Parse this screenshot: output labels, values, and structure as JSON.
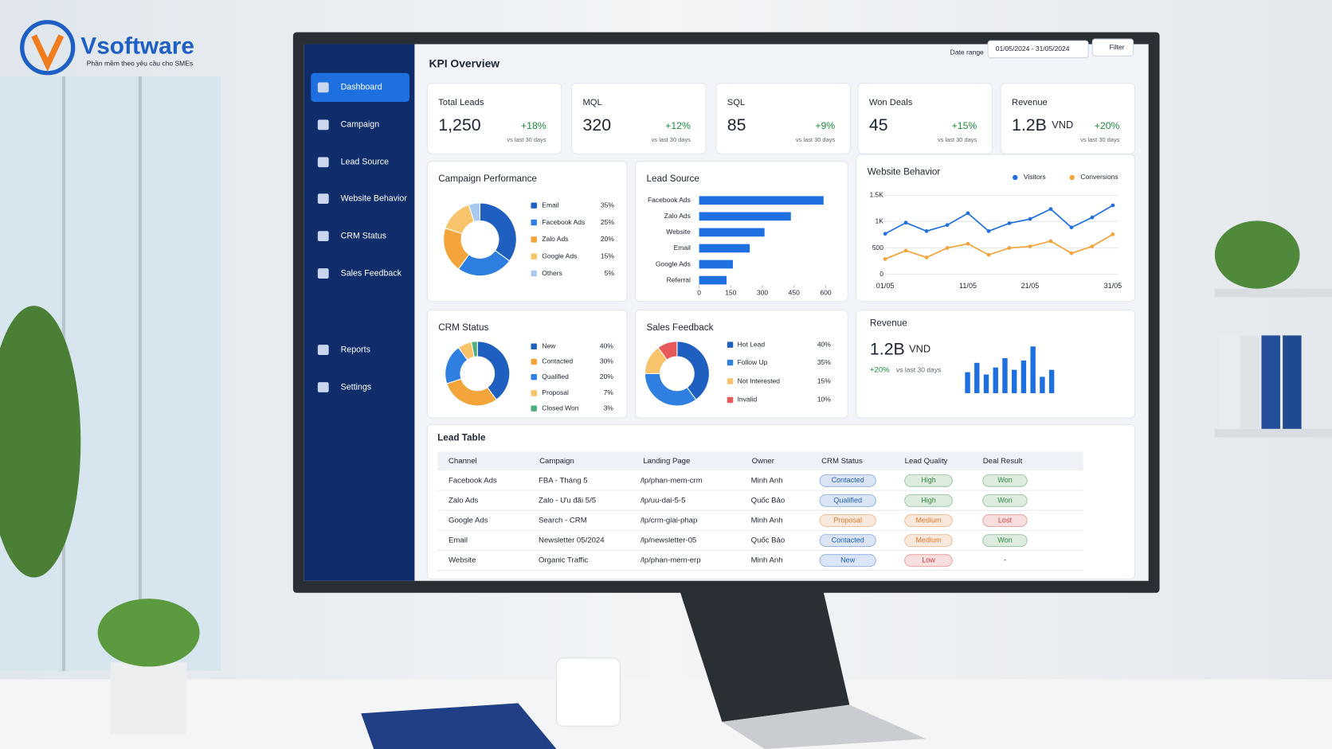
{
  "logo": {
    "brand": "Vsoftware",
    "tagline": "Phần mềm theo yêu cầu cho SMEs"
  },
  "sidebar": {
    "items": [
      "Dashboard",
      "Campaign",
      "Lead Source",
      "Website Behavior",
      "CRM Status",
      "Sales Feedback",
      "Reports",
      "Settings"
    ]
  },
  "header": {
    "title": "KPI Overview",
    "date_label": "Date range",
    "date_range": "01/05/2024 - 31/05/2024",
    "filter": "Filter"
  },
  "kpis": [
    {
      "label": "Total Leads",
      "value": "1,250",
      "change": "+18%",
      "note": "vs last 30 days"
    },
    {
      "label": "MQL",
      "value": "320",
      "change": "+12%",
      "note": "vs last 30 days"
    },
    {
      "label": "SQL",
      "value": "85",
      "change": "+9%",
      "note": "vs last 30 days"
    },
    {
      "label": "Won Deals",
      "value": "45",
      "change": "+15%",
      "note": "vs last 30 days"
    },
    {
      "label": "Revenue",
      "value": "1.2B",
      "unit": "VND",
      "change": "+20%",
      "note": "vs last 30 days"
    }
  ],
  "chart_data": [
    {
      "type": "pie",
      "title": "Campaign Performance",
      "categories": [
        "Email",
        "Facebook Ads",
        "Zalo Ads",
        "Google Ads",
        "Others"
      ],
      "values": [
        35,
        25,
        20,
        15,
        5
      ],
      "value_labels": [
        "35%",
        "25%",
        "20%",
        "15%",
        "5%"
      ],
      "colors": [
        "#1f5fbf",
        "#2f7fe0",
        "#f3a43a",
        "#f7c46b",
        "#a9c9f0"
      ]
    },
    {
      "type": "bar",
      "title": "Lead Source",
      "horizontal": true,
      "categories": [
        "Facebook Ads",
        "Zalo Ads",
        "Website",
        "Email",
        "Google Ads",
        "Referral"
      ],
      "values": [
        590,
        435,
        310,
        240,
        160,
        130
      ],
      "color": "#1e6fe0",
      "xlim": [
        0,
        600
      ],
      "xticks": [
        0,
        150,
        300,
        450,
        600
      ]
    },
    {
      "type": "line",
      "title": "Website Behavior",
      "categories": [
        "01/05",
        null,
        null,
        null,
        "11/05",
        null,
        null,
        "21/05",
        null,
        null,
        null,
        "31/05"
      ],
      "ylim": [
        0,
        1500
      ],
      "yticks": [
        0,
        500,
        {
          "value": 1000,
          "label": "1K"
        },
        {
          "value": 1500,
          "label": "1.5K"
        }
      ],
      "grid": true,
      "series": [
        {
          "name": "Visitors",
          "color": "#1e6fe0",
          "values": [
            770,
            980,
            820,
            935,
            1160,
            820,
            970,
            1050,
            1240,
            890,
            1080,
            1310
          ]
        },
        {
          "name": "Conversions",
          "color": "#f2a33a",
          "values": [
            290,
            450,
            320,
            500,
            580,
            370,
            500,
            530,
            630,
            400,
            530,
            760
          ]
        }
      ]
    },
    {
      "type": "pie",
      "title": "CRM Status",
      "categories": [
        "New",
        "Contacted",
        "Qualified",
        "Proposal",
        "Closed Won"
      ],
      "values": [
        40,
        30,
        20,
        7,
        3
      ],
      "value_labels": [
        "40%",
        "30%",
        "20%",
        "7%",
        "3%"
      ],
      "colors": [
        "#1f5fbf",
        "#f3a43a",
        "#2f7fe0",
        "#f7c46b",
        "#4caf7a"
      ]
    },
    {
      "type": "pie",
      "title": "Sales Feedback",
      "categories": [
        "Hot Lead",
        "Follow Up",
        "Not Interested",
        "Invalid"
      ],
      "values": [
        40,
        35,
        15,
        10
      ],
      "value_labels": [
        "40%",
        "35%",
        "15%",
        "10%"
      ],
      "colors": [
        "#1f5fbf",
        "#2f7fe0",
        "#f7c46b",
        "#e85a5a"
      ]
    },
    {
      "type": "bar",
      "title": "Revenue",
      "value": "1.2B",
      "unit": "VND",
      "change": "+20%",
      "note": "vs last 30 days",
      "values": [
        45,
        65,
        40,
        55,
        75,
        50,
        70,
        100,
        35,
        50
      ],
      "color": "#1e6fe0"
    }
  ],
  "table": {
    "title": "Lead Table",
    "columns": [
      "Channel",
      "Campaign",
      "Landing Page",
      "Owner",
      "CRM Status",
      "Lead Quality",
      "Deal Result"
    ],
    "rows": [
      [
        "Facebook Ads",
        "FBA - Tháng 5",
        "/lp/phan-mem-crm",
        "Minh Anh",
        "Contacted",
        "High",
        "Won"
      ],
      [
        "Zalo Ads",
        "Zalo - Ưu đãi 5/5",
        "/lp/uu-dai-5-5",
        "Quốc Bảo",
        "Qualified",
        "High",
        "Won"
      ],
      [
        "Google Ads",
        "Search - CRM",
        "/lp/crm-giai-phap",
        "Minh Anh",
        "Proposal",
        "Medium",
        "Lost"
      ],
      [
        "Email",
        "Newsletter 05/2024",
        "/lp/newsletter-05",
        "Quốc Bảo",
        "Contacted",
        "Medium",
        "Won"
      ],
      [
        "Website",
        "Organic Traffic",
        "/lp/phan-mem-erp",
        "Minh Anh",
        "New",
        "Low",
        "-"
      ]
    ],
    "badge_colors": [
      [
        "#1e5fbf",
        "#2f8a3f",
        "#2f8a3f"
      ],
      [
        "#1e5fbf",
        "#2f8a3f",
        "#2f8a3f"
      ],
      [
        "#d9782b",
        "#d9782b",
        "#d23b3b"
      ],
      [
        "#1e5fbf",
        "#d9782b",
        "#2f8a3f"
      ],
      [
        "#1e5fbf",
        "#d23b3b",
        null
      ]
    ]
  }
}
